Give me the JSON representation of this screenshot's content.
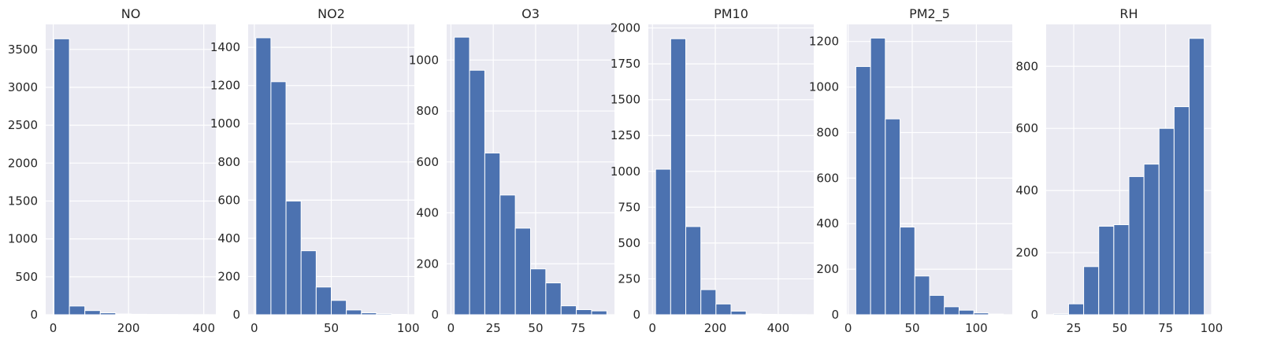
{
  "colors": {
    "bar_fill": "#4C72B0",
    "plot_background": "#EAEAF2",
    "grid": "#FFFFFF",
    "text": "#262626"
  },
  "chart_data": [
    {
      "type": "bar",
      "title": "NO",
      "grid": true,
      "xlabel": "",
      "ylabel": "",
      "bin_edges": [
        2,
        43,
        84,
        125,
        166,
        207,
        248,
        289,
        330,
        371,
        412
      ],
      "values": [
        3640,
        115,
        55,
        25,
        10,
        6,
        4,
        3,
        2,
        1
      ],
      "xlim": [
        -20,
        432
      ],
      "ylim": [
        0,
        3830
      ],
      "xticks": [
        0,
        200,
        400
      ],
      "yticks": [
        0,
        500,
        1000,
        1500,
        2000,
        2500,
        3000,
        3500
      ]
    },
    {
      "type": "bar",
      "title": "NO2",
      "grid": true,
      "xlabel": "",
      "ylabel": "",
      "bin_edges": [
        1,
        10.8,
        20.6,
        30.4,
        40.2,
        50,
        59.8,
        69.6,
        79.4,
        89.2,
        99
      ],
      "values": [
        1450,
        1220,
        595,
        335,
        145,
        75,
        25,
        10,
        5,
        2
      ],
      "xlim": [
        -4,
        104
      ],
      "ylim": [
        0,
        1520
      ],
      "xticks": [
        0,
        50,
        100
      ],
      "yticks": [
        0,
        200,
        400,
        600,
        800,
        1000,
        1200,
        1400
      ]
    },
    {
      "type": "bar",
      "title": "O3",
      "grid": true,
      "xlabel": "",
      "ylabel": "",
      "bin_edges": [
        2,
        11,
        20,
        29,
        38,
        47,
        56,
        65,
        74,
        83,
        92
      ],
      "values": [
        1090,
        960,
        635,
        470,
        340,
        180,
        125,
        35,
        20,
        15
      ],
      "xlim": [
        -2.5,
        96.5
      ],
      "ylim": [
        0,
        1140
      ],
      "xticks": [
        0,
        25,
        50,
        75
      ],
      "yticks": [
        0,
        200,
        400,
        600,
        800,
        1000
      ]
    },
    {
      "type": "bar",
      "title": "PM10",
      "grid": true,
      "xlabel": "",
      "ylabel": "",
      "bin_edges": [
        10,
        58,
        106,
        154,
        202,
        250,
        298,
        346,
        394,
        442,
        490
      ],
      "values": [
        1015,
        1925,
        615,
        175,
        75,
        25,
        5,
        3,
        2,
        1
      ],
      "xlim": [
        -13,
        513
      ],
      "ylim": [
        0,
        2025
      ],
      "xticks": [
        0,
        200,
        400
      ],
      "yticks": [
        0,
        250,
        500,
        750,
        1000,
        1250,
        1500,
        1750,
        2000
      ]
    },
    {
      "type": "bar",
      "title": "PM2_5",
      "grid": true,
      "xlabel": "",
      "ylabel": "",
      "bin_edges": [
        6,
        17.5,
        29,
        40.5,
        52,
        63.5,
        75,
        86.5,
        98,
        109.5,
        121
      ],
      "values": [
        1090,
        1215,
        860,
        385,
        170,
        85,
        35,
        20,
        8,
        3
      ],
      "xlim": [
        -1,
        128
      ],
      "ylim": [
        0,
        1275
      ],
      "xticks": [
        0,
        50,
        100
      ],
      "yticks": [
        0,
        200,
        400,
        600,
        800,
        1000,
        1200
      ]
    },
    {
      "type": "bar",
      "title": "RH",
      "grid": true,
      "xlabel": "",
      "ylabel": "",
      "bin_edges": [
        14,
        22.2,
        30.4,
        38.6,
        46.8,
        55,
        63.2,
        71.4,
        79.6,
        87.8,
        96
      ],
      "values": [
        3,
        35,
        155,
        285,
        290,
        445,
        485,
        600,
        670,
        890
      ],
      "xlim": [
        10,
        100
      ],
      "ylim": [
        0,
        935
      ],
      "xticks": [
        25,
        50,
        75,
        100
      ],
      "yticks": [
        0,
        200,
        400,
        600,
        800
      ]
    }
  ]
}
